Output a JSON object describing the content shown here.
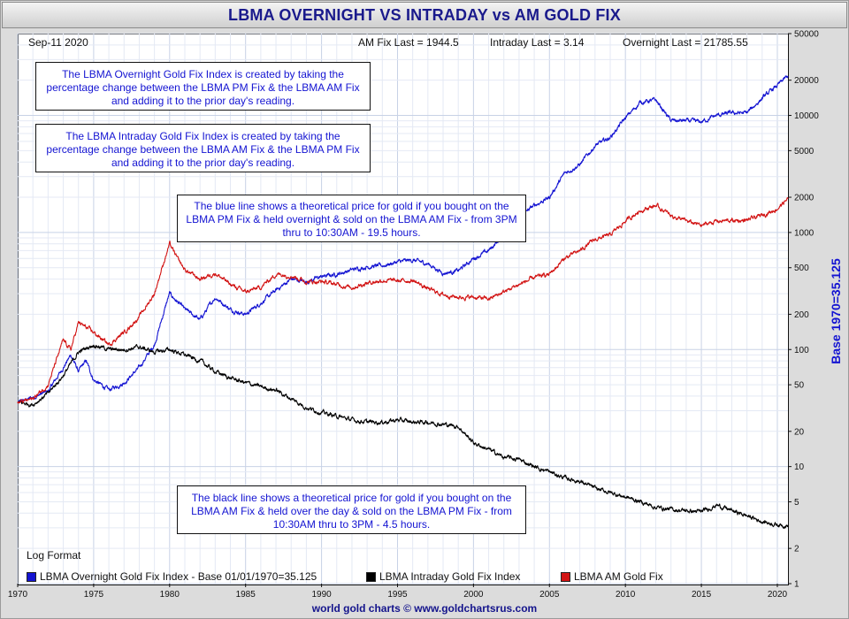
{
  "title": "LBMA OVERNIGHT VS INTRADAY vs AM GOLD FIX",
  "header": {
    "date": "Sep-11  2020",
    "am_fix_last": "AM Fix Last = 1944.5",
    "intraday_last": "Intraday Last = 3.14",
    "overnight_last": "Overnight Last = 21785.55"
  },
  "notes": {
    "overnight_def": "The LBMA Overnight Gold Fix Index is created by taking the percentage change between the LBMA PM Fix & the LBMA AM Fix and adding it to the prior day's reading.",
    "intraday_def": "The LBMA Intraday Gold Fix Index is created by taking the percentage change between the LBMA AM Fix & the LBMA PM Fix and adding it to the prior day's reading.",
    "blue_line": "The blue line shows a theoretical price for gold if you bought on the LBMA PM Fix & held overnight & sold on the LBMA AM Fix - from 3PM thru to 10:30AM - 19.5 hours.",
    "black_line": "The black line shows a theoretical price for gold if you bought on the LBMA AM Fix & held over the day & sold on the LBMA PM Fix - from 10:30AM thru to 3PM - 4.5 hours."
  },
  "log_format": "Log Format",
  "footer": "world gold charts © www.goldchartsrus.com",
  "chart_data": {
    "type": "line",
    "title": "LBMA OVERNIGHT VS INTRADAY vs AM GOLD FIX",
    "ylabel": "Base 1970=35.125",
    "xlabel": "",
    "yscale": "log",
    "ylim": [
      1,
      50000
    ],
    "xlim": [
      1970,
      2020.7
    ],
    "grid": true,
    "legend_position": "bottom",
    "x_ticks": [
      "1970",
      "1975",
      "1980",
      "1985",
      "1990",
      "1995",
      "2000",
      "2005",
      "2010",
      "2015",
      "2020"
    ],
    "y_ticks": [
      "1",
      "2",
      "5",
      "10",
      "20",
      "50",
      "100",
      "200",
      "500",
      "1000",
      "2000",
      "5000",
      "10000",
      "20000",
      "50000"
    ],
    "series": [
      {
        "name": "LBMA Overnight Gold Fix Index - Base 01/01/1970=35.125",
        "color": "#1414d2",
        "points": [
          [
            1970,
            35
          ],
          [
            1971,
            39
          ],
          [
            1972,
            44
          ],
          [
            1973,
            70
          ],
          [
            1973.5,
            90
          ],
          [
            1974,
            65
          ],
          [
            1974.5,
            80
          ],
          [
            1975,
            55
          ],
          [
            1976,
            45
          ],
          [
            1977,
            52
          ],
          [
            1978,
            70
          ],
          [
            1979,
            110
          ],
          [
            1979.8,
            250
          ],
          [
            1980,
            300
          ],
          [
            1981,
            220
          ],
          [
            1982,
            180
          ],
          [
            1983,
            280
          ],
          [
            1984,
            220
          ],
          [
            1985,
            200
          ],
          [
            1986,
            250
          ],
          [
            1987,
            320
          ],
          [
            1988,
            400
          ],
          [
            1989,
            380
          ],
          [
            1990,
            420
          ],
          [
            1991,
            440
          ],
          [
            1992,
            480
          ],
          [
            1993,
            510
          ],
          [
            1994,
            520
          ],
          [
            1995,
            560
          ],
          [
            1996,
            580
          ],
          [
            1997,
            540
          ],
          [
            1998,
            450
          ],
          [
            1999,
            470
          ],
          [
            2000,
            600
          ],
          [
            2001,
            700
          ],
          [
            2002,
            950
          ],
          [
            2003,
            1350
          ],
          [
            2004,
            1700
          ],
          [
            2005,
            2000
          ],
          [
            2006,
            3200
          ],
          [
            2007,
            3800
          ],
          [
            2008,
            5500
          ],
          [
            2009,
            6500
          ],
          [
            2010,
            9500
          ],
          [
            2011,
            13000
          ],
          [
            2012,
            13500
          ],
          [
            2013,
            9000
          ],
          [
            2014,
            9000
          ],
          [
            2015,
            8800
          ],
          [
            2016,
            10000
          ],
          [
            2017,
            10500
          ],
          [
            2018,
            10500
          ],
          [
            2019,
            14000
          ],
          [
            2020,
            18000
          ],
          [
            2020.7,
            21785.55
          ]
        ]
      },
      {
        "name": "LBMA Intraday Gold Fix Index",
        "color": "#000000",
        "points": [
          [
            1970,
            35
          ],
          [
            1971,
            34
          ],
          [
            1972,
            42
          ],
          [
            1973,
            60
          ],
          [
            1974,
            95
          ],
          [
            1975,
            110
          ],
          [
            1976,
            100
          ],
          [
            1977,
            100
          ],
          [
            1978,
            105
          ],
          [
            1979,
            95
          ],
          [
            1980,
            100
          ],
          [
            1981,
            90
          ],
          [
            1982,
            80
          ],
          [
            1983,
            65
          ],
          [
            1984,
            57
          ],
          [
            1985,
            52
          ],
          [
            1986,
            48
          ],
          [
            1987,
            45
          ],
          [
            1988,
            38
          ],
          [
            1989,
            32
          ],
          [
            1990,
            29
          ],
          [
            1991,
            27
          ],
          [
            1992,
            25
          ],
          [
            1993,
            24
          ],
          [
            1994,
            24
          ],
          [
            1995,
            25
          ],
          [
            1996,
            24
          ],
          [
            1997,
            24
          ],
          [
            1998,
            23
          ],
          [
            1999,
            22
          ],
          [
            2000,
            16
          ],
          [
            2001,
            14
          ],
          [
            2002,
            12
          ],
          [
            2003,
            11.5
          ],
          [
            2004,
            10
          ],
          [
            2005,
            9
          ],
          [
            2006,
            8
          ],
          [
            2007,
            7.5
          ],
          [
            2008,
            6.5
          ],
          [
            2009,
            6
          ],
          [
            2010,
            5.5
          ],
          [
            2011,
            5
          ],
          [
            2012,
            4.5
          ],
          [
            2013,
            4.3
          ],
          [
            2014,
            4.2
          ],
          [
            2015,
            4.1
          ],
          [
            2016,
            4.7
          ],
          [
            2017,
            4.2
          ],
          [
            2018,
            3.8
          ],
          [
            2019,
            3.4
          ],
          [
            2020,
            3.2
          ],
          [
            2020.7,
            3.14
          ]
        ]
      },
      {
        "name": "LBMA AM Gold Fix",
        "color": "#d21414",
        "points": [
          [
            1970,
            35
          ],
          [
            1971,
            38
          ],
          [
            1972,
            50
          ],
          [
            1973,
            120
          ],
          [
            1973.5,
            100
          ],
          [
            1974,
            170
          ],
          [
            1975,
            140
          ],
          [
            1976,
            110
          ],
          [
            1977,
            140
          ],
          [
            1978,
            190
          ],
          [
            1979,
            300
          ],
          [
            1979.5,
            500
          ],
          [
            1980,
            800
          ],
          [
            1980.5,
            600
          ],
          [
            1981,
            480
          ],
          [
            1982,
            400
          ],
          [
            1983,
            450
          ],
          [
            1984,
            360
          ],
          [
            1985,
            310
          ],
          [
            1986,
            340
          ],
          [
            1987,
            440
          ],
          [
            1988,
            430
          ],
          [
            1989,
            380
          ],
          [
            1990,
            380
          ],
          [
            1991,
            360
          ],
          [
            1992,
            340
          ],
          [
            1993,
            370
          ],
          [
            1994,
            390
          ],
          [
            1995,
            385
          ],
          [
            1996,
            390
          ],
          [
            1997,
            330
          ],
          [
            1998,
            295
          ],
          [
            1999,
            280
          ],
          [
            2000,
            280
          ],
          [
            2001,
            270
          ],
          [
            2002,
            310
          ],
          [
            2003,
            360
          ],
          [
            2004,
            410
          ],
          [
            2005,
            440
          ],
          [
            2006,
            600
          ],
          [
            2007,
            700
          ],
          [
            2008,
            870
          ],
          [
            2009,
            950
          ],
          [
            2010,
            1250
          ],
          [
            2011,
            1550
          ],
          [
            2012,
            1700
          ],
          [
            2013,
            1400
          ],
          [
            2014,
            1250
          ],
          [
            2015,
            1150
          ],
          [
            2016,
            1250
          ],
          [
            2017,
            1260
          ],
          [
            2018,
            1270
          ],
          [
            2019,
            1400
          ],
          [
            2020,
            1600
          ],
          [
            2020.7,
            1944.5
          ]
        ]
      }
    ]
  }
}
